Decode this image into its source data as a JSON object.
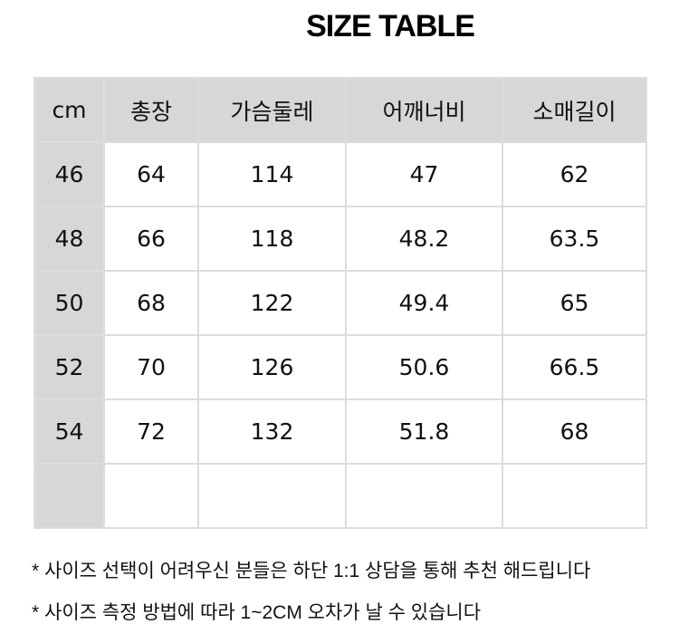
{
  "title": "SIZE TABLE",
  "table": {
    "headers": [
      "cm",
      "총장",
      "가슴둘레",
      "어깨너비",
      "소매길이"
    ],
    "rows": [
      [
        "46",
        "64",
        "114",
        "47",
        "62"
      ],
      [
        "48",
        "66",
        "118",
        "48.2",
        "63.5"
      ],
      [
        "50",
        "68",
        "122",
        "49.4",
        "65"
      ],
      [
        "52",
        "70",
        "126",
        "50.6",
        "66.5"
      ],
      [
        "54",
        "72",
        "132",
        "51.8",
        "68"
      ],
      [
        "",
        "",
        "",
        "",
        ""
      ]
    ]
  },
  "notes": [
    "* 사이즈 선택이 어려우신 분들은 하단 1:1 상담을 통해 추천 해드립니다",
    "* 사이즈 측정 방법에 따라 1~2CM 오차가 날 수 있습니다"
  ]
}
